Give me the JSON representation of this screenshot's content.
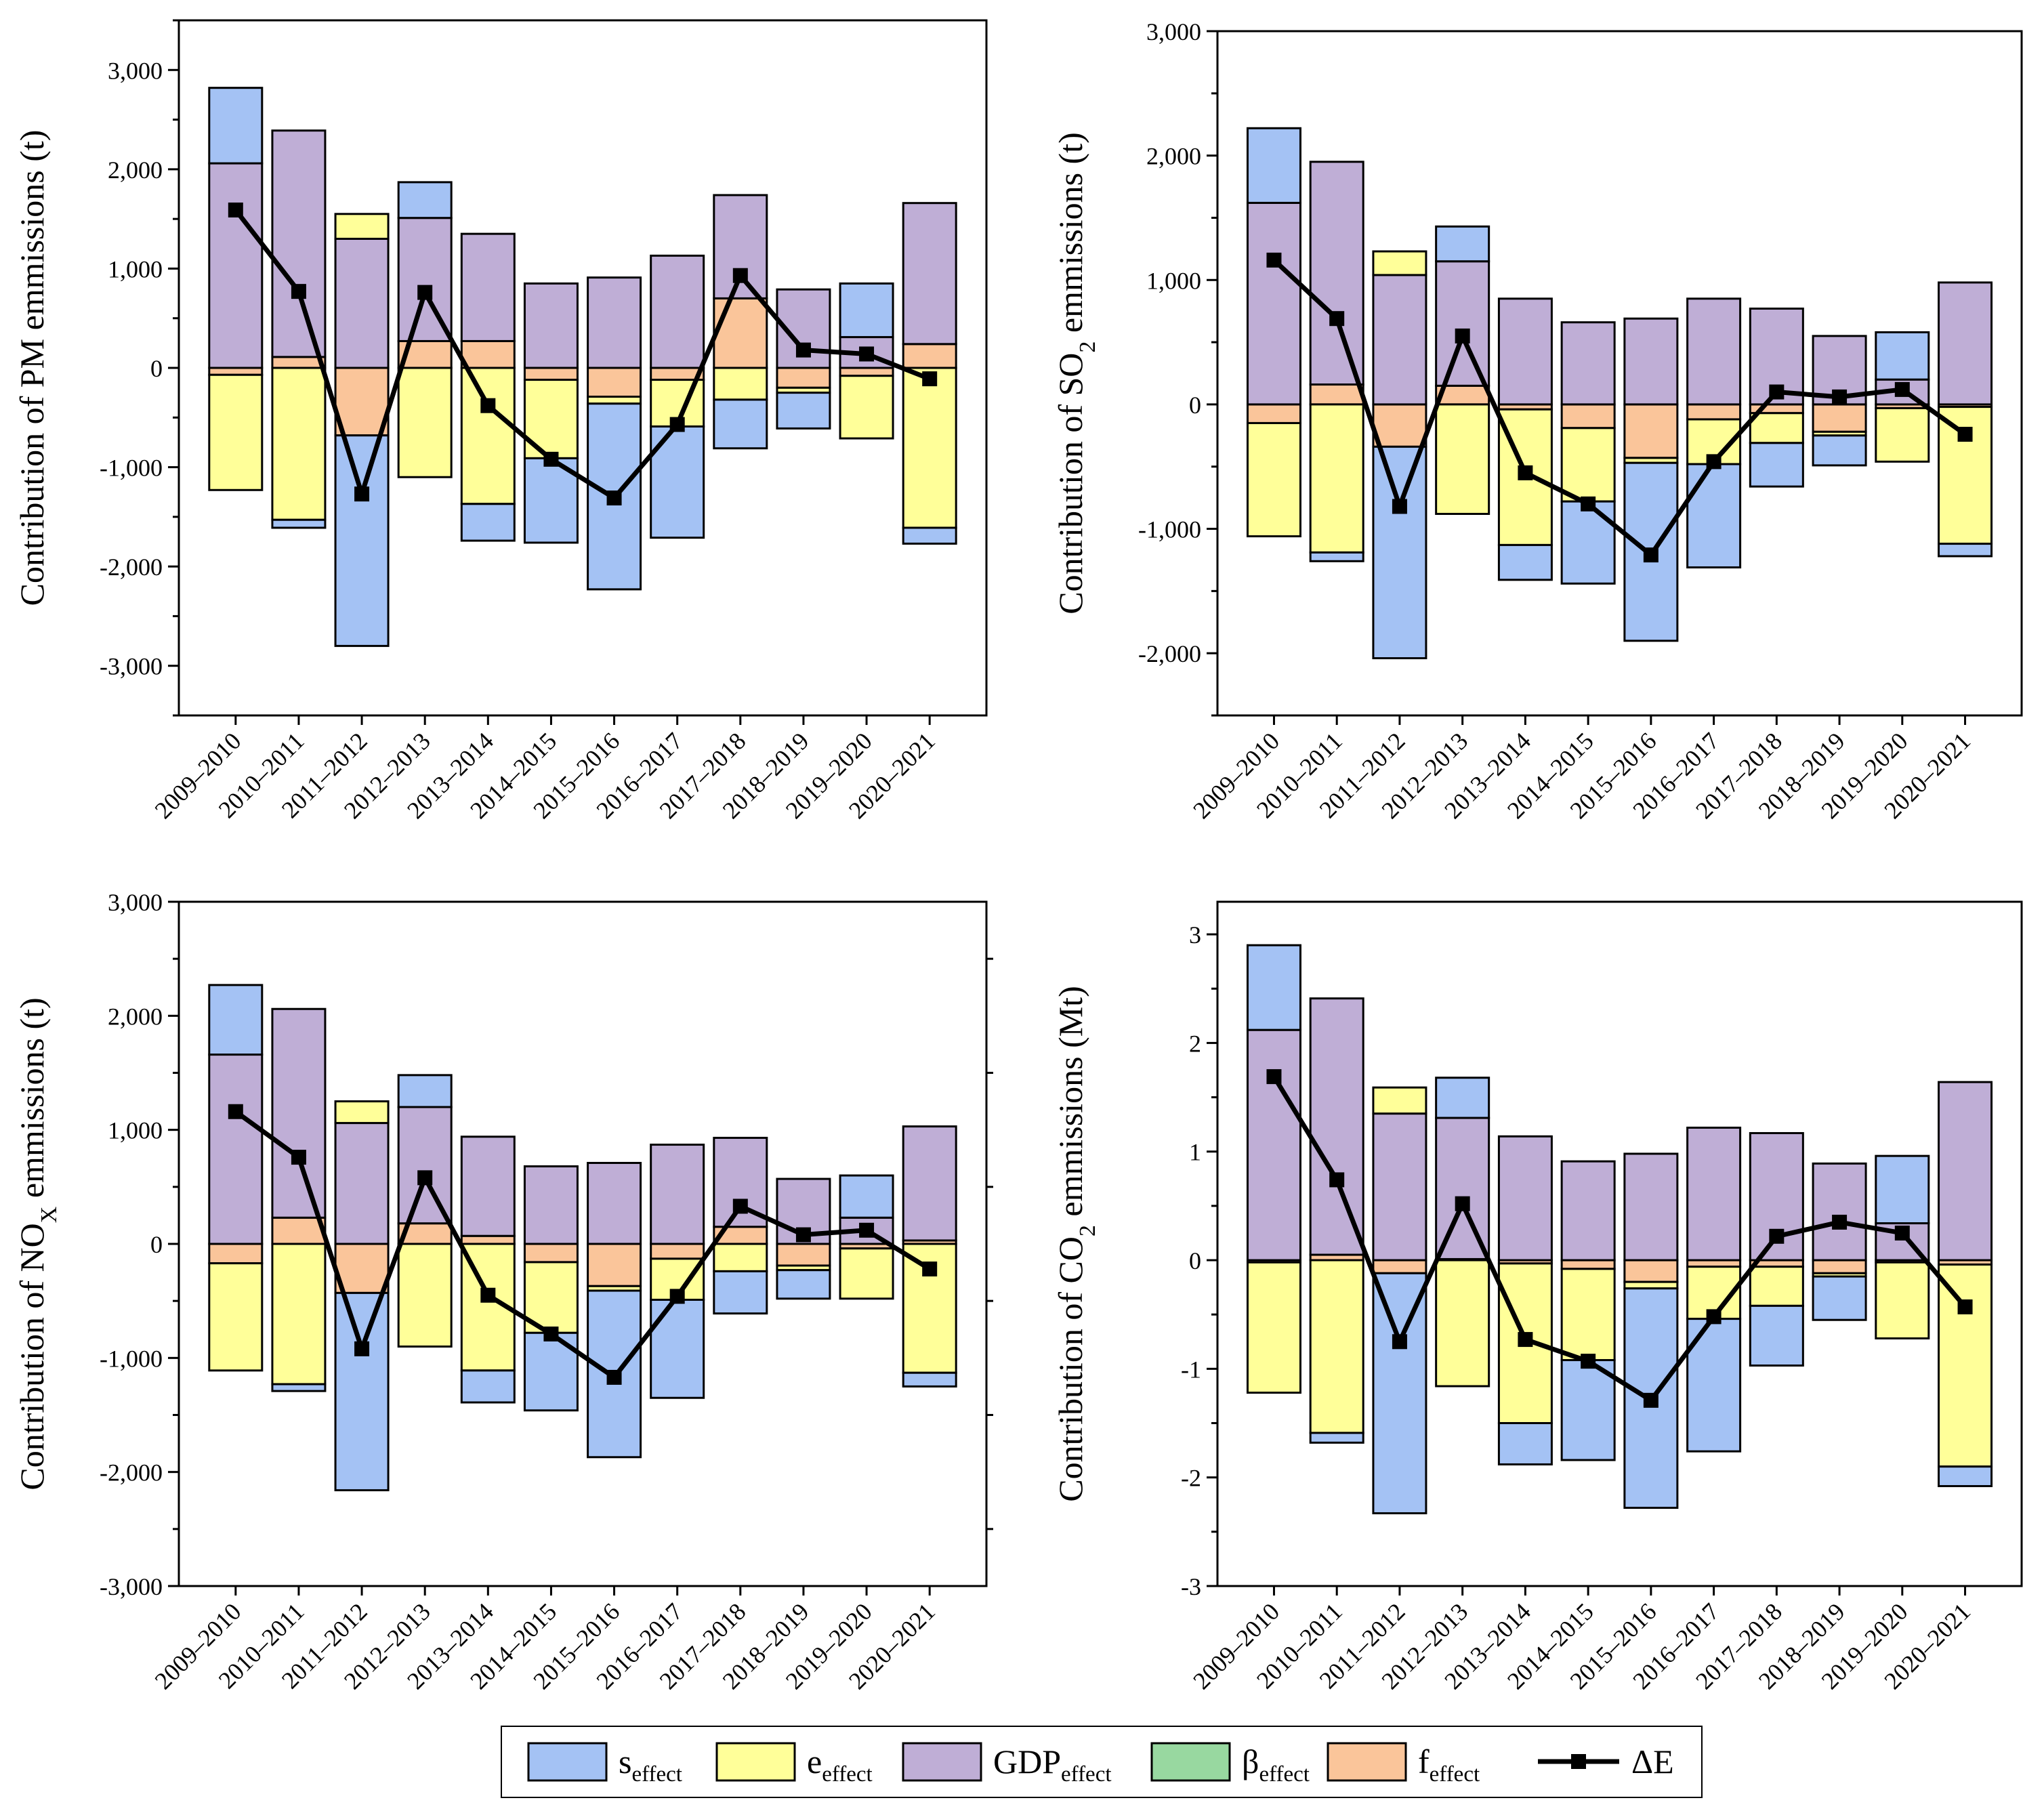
{
  "colors": {
    "s": "#a4c2f4",
    "e": "#ffff99",
    "gdp": "#bfaed6",
    "beta": "#98d8a0",
    "f": "#fac59a",
    "line": "#000000"
  },
  "legend": {
    "items": [
      {
        "key": "s",
        "base": "s",
        "sub": "effect",
        "kind": "box"
      },
      {
        "key": "e",
        "base": "e",
        "sub": "effect",
        "kind": "box"
      },
      {
        "key": "gdp",
        "base": "GDP",
        "sub": "effect",
        "kind": "box"
      },
      {
        "key": "beta",
        "base": "β",
        "sub": "effect",
        "kind": "box"
      },
      {
        "key": "f",
        "base": "f",
        "sub": "effect",
        "kind": "box"
      },
      {
        "key": "dE",
        "base": "ΔE",
        "sub": "",
        "kind": "line"
      }
    ]
  },
  "chart_data": [
    {
      "type": "bar",
      "stacked": true,
      "id": "pm",
      "ylabel": {
        "pre": "Contribution of PM emmissions (t)",
        "sub": "",
        "post": ""
      },
      "ylim": [
        -3500,
        3500
      ],
      "yticks": [
        -3000,
        -2000,
        -1000,
        0,
        1000,
        2000,
        3000
      ],
      "tick_labels": [
        "-3,000",
        "-2,000",
        "-1,000",
        "0",
        "1,000",
        "2,000",
        "3,000"
      ],
      "categories": [
        "2009–2010",
        "2010–2011",
        "2011–2012",
        "2012–2013",
        "2013–2014",
        "2014–2015",
        "2015–2016",
        "2016–2017",
        "2017–2018",
        "2018–2019",
        "2019–2020",
        "2020–2021"
      ],
      "series": [
        {
          "name": "f_effect",
          "key": "f",
          "values": [
            -70,
            110,
            -680,
            270,
            270,
            -120,
            -290,
            -120,
            700,
            -200,
            -80,
            240
          ]
        },
        {
          "name": "GDP_effect",
          "key": "gdp",
          "values": [
            2060,
            2280,
            1300,
            1240,
            1080,
            850,
            910,
            1130,
            1040,
            790,
            310,
            1420
          ]
        },
        {
          "name": "e_effect",
          "key": "e",
          "values": [
            -1160,
            -1530,
            250,
            -1100,
            -1370,
            -790,
            -70,
            -470,
            -320,
            -50,
            -630,
            -1610
          ]
        },
        {
          "name": "s_effect",
          "key": "s",
          "values": [
            760,
            -80,
            -2120,
            360,
            -370,
            -850,
            -1870,
            -1120,
            -490,
            -360,
            540,
            -160
          ]
        },
        {
          "name": "beta_effect",
          "key": "beta",
          "values": [
            0,
            0,
            0,
            0,
            0,
            0,
            0,
            0,
            0,
            0,
            0,
            0
          ]
        }
      ],
      "dE": [
        1590,
        770,
        -1270,
        760,
        -380,
        -920,
        -1310,
        -570,
        930,
        180,
        140,
        -110
      ]
    },
    {
      "type": "bar",
      "stacked": true,
      "id": "so2",
      "ylabel": {
        "pre": "Contribution of SO",
        "sub": "2",
        "post": " emmissions (t)"
      },
      "ylim": [
        -2500,
        3000
      ],
      "yticks": [
        -2000,
        -1000,
        0,
        1000,
        2000,
        3000
      ],
      "tick_labels": [
        "-2,000",
        "-1,000",
        "0",
        "1,000",
        "2,000",
        "3,000"
      ],
      "categories": [
        "2009–2010",
        "2010–2011",
        "2011–2012",
        "2012–2013",
        "2013–2014",
        "2014–2015",
        "2015–2016",
        "2016–2017",
        "2017–2018",
        "2018–2019",
        "2019–2020",
        "2020–2021"
      ],
      "series": [
        {
          "name": "f_effect",
          "key": "f",
          "values": [
            -150,
            160,
            -340,
            150,
            -40,
            -190,
            -430,
            -120,
            -70,
            -220,
            -30,
            -20
          ]
        },
        {
          "name": "GDP_effect",
          "key": "gdp",
          "values": [
            1620,
            1790,
            1040,
            1000,
            850,
            660,
            690,
            850,
            770,
            550,
            200,
            980
          ]
        },
        {
          "name": "e_effect",
          "key": "e",
          "values": [
            -910,
            -1190,
            190,
            -880,
            -1090,
            -590,
            -40,
            -360,
            -240,
            -30,
            -430,
            -1100
          ]
        },
        {
          "name": "s_effect",
          "key": "s",
          "values": [
            600,
            -70,
            -1700,
            280,
            -280,
            -660,
            -1430,
            -830,
            -350,
            -240,
            380,
            -100
          ]
        },
        {
          "name": "beta_effect",
          "key": "beta",
          "values": [
            0,
            0,
            0,
            0,
            0,
            0,
            0,
            0,
            0,
            0,
            0,
            0
          ]
        }
      ],
      "dE": [
        1160,
        690,
        -820,
        550,
        -550,
        -800,
        -1210,
        -460,
        100,
        60,
        120,
        -240
      ]
    },
    {
      "type": "bar",
      "stacked": true,
      "id": "nox",
      "ylabel": {
        "pre": "Contribution of NO",
        "sub": "X",
        "post": " emmissions (t)"
      },
      "ylim": [
        -3000,
        3000
      ],
      "yticks": [
        -3000,
        -2000,
        -1000,
        0,
        1000,
        2000,
        3000
      ],
      "tick_labels": [
        "-3,000",
        "-2,000",
        "-1,000",
        "0",
        "1,000",
        "2,000",
        "3,000"
      ],
      "categories": [
        "2009–2010",
        "2010–2011",
        "2011–2012",
        "2012–2013",
        "2013–2014",
        "2014–2015",
        "2015–2016",
        "2016–2017",
        "2017–2018",
        "2018–2019",
        "2019–2020",
        "2020–2021"
      ],
      "series": [
        {
          "name": "f_effect",
          "key": "f",
          "values": [
            -170,
            230,
            -430,
            180,
            70,
            -160,
            -370,
            -130,
            150,
            -190,
            -40,
            30
          ]
        },
        {
          "name": "GDP_effect",
          "key": "gdp",
          "values": [
            1660,
            1830,
            1060,
            1020,
            870,
            680,
            710,
            870,
            780,
            570,
            230,
            1000
          ]
        },
        {
          "name": "e_effect",
          "key": "e",
          "values": [
            -940,
            -1230,
            190,
            -900,
            -1110,
            -620,
            -40,
            -360,
            -240,
            -40,
            -440,
            -1130
          ]
        },
        {
          "name": "s_effect",
          "key": "s",
          "values": [
            610,
            -60,
            -1730,
            280,
            -280,
            -680,
            -1460,
            -860,
            -370,
            -250,
            370,
            -120
          ]
        },
        {
          "name": "beta_effect",
          "key": "beta",
          "values": [
            0,
            0,
            0,
            0,
            0,
            0,
            0,
            0,
            0,
            0,
            0,
            0
          ]
        }
      ],
      "dE": [
        1160,
        760,
        -920,
        580,
        -450,
        -790,
        -1170,
        -460,
        330,
        80,
        120,
        -220
      ]
    },
    {
      "type": "bar",
      "stacked": true,
      "id": "co2",
      "ylabel": {
        "pre": "Contribution of CO",
        "sub": "2",
        "post": " emmissions (Mt)"
      },
      "ylim": [
        -3,
        3.3
      ],
      "yticks": [
        -3,
        -2,
        -1,
        0,
        1,
        2,
        3
      ],
      "tick_labels": [
        "-3",
        "-2",
        "-1",
        "0",
        "1",
        "2",
        "3"
      ],
      "categories": [
        "2009–2010",
        "2010–2011",
        "2011–2012",
        "2012–2013",
        "2013–2014",
        "2014–2015",
        "2015–2016",
        "2016–2017",
        "2017–2018",
        "2018–2019",
        "2019–2020",
        "2020–2021"
      ],
      "series": [
        {
          "name": "f_effect",
          "key": "f",
          "values": [
            -0.02,
            0.05,
            -0.12,
            0.01,
            -0.03,
            -0.08,
            -0.2,
            -0.06,
            -0.06,
            -0.12,
            -0.02,
            -0.04
          ]
        },
        {
          "name": "GDP_effect",
          "key": "gdp",
          "values": [
            2.12,
            2.36,
            1.35,
            1.3,
            1.14,
            0.91,
            0.98,
            1.22,
            1.17,
            0.89,
            0.34,
            1.64
          ]
        },
        {
          "name": "e_effect",
          "key": "e",
          "values": [
            -1.2,
            -1.59,
            0.24,
            -1.16,
            -1.47,
            -0.84,
            -0.06,
            -0.48,
            -0.36,
            -0.03,
            -0.7,
            -1.86
          ]
        },
        {
          "name": "s_effect",
          "key": "s",
          "values": [
            0.78,
            -0.09,
            -2.21,
            0.37,
            -0.38,
            -0.92,
            -2.02,
            -1.22,
            -0.55,
            -0.4,
            0.62,
            -0.18
          ]
        },
        {
          "name": "beta_effect",
          "key": "beta",
          "values": [
            0,
            0,
            0,
            0,
            0,
            0,
            0,
            0,
            0,
            0,
            0,
            0
          ]
        }
      ],
      "dE": [
        1.69,
        0.74,
        -0.75,
        0.52,
        -0.73,
        -0.93,
        -1.29,
        -0.52,
        0.22,
        0.35,
        0.25,
        -0.43
      ]
    }
  ]
}
